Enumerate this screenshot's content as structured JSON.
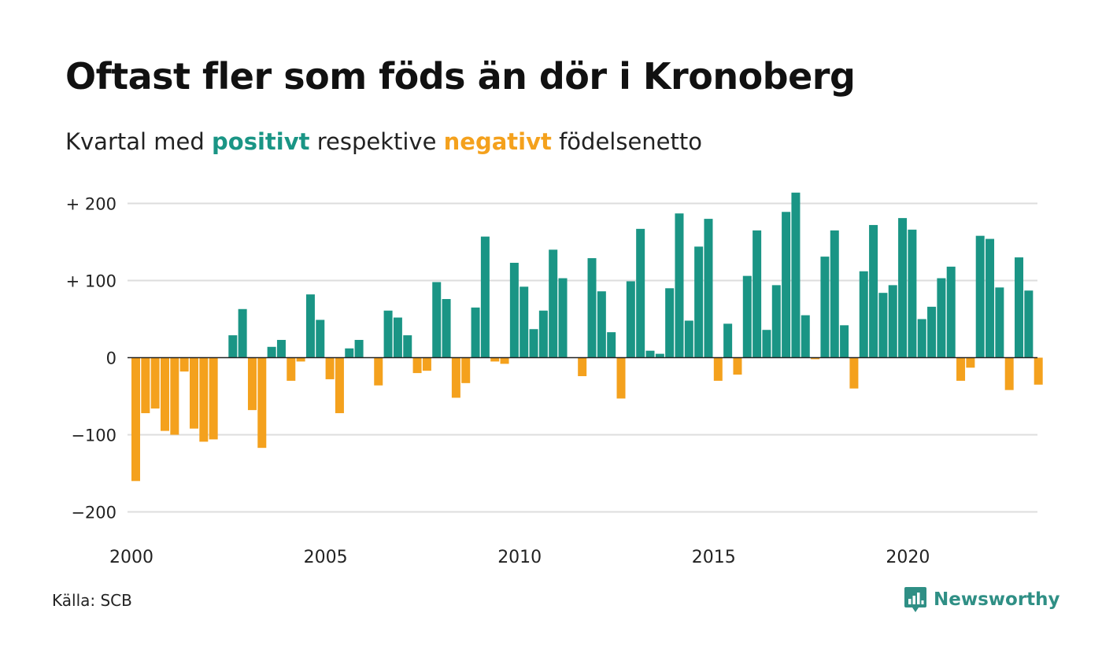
{
  "title": "Oftast fler som föds än dör i Kronoberg",
  "subtitle": {
    "prefix": "Kvartal med ",
    "positive": "positivt",
    "middle": " respektive ",
    "negative": "negativt",
    "suffix": " födelsenetto"
  },
  "source": "Källa: SCB",
  "brand": "Newsworthy",
  "colors": {
    "positive": "#1a9585",
    "negative": "#f4a11d",
    "grid": "#dddddd",
    "axis": "#222222",
    "logo": "#2f8f85"
  },
  "icons": {
    "logo": "chat-bubble-bar-chart-icon"
  },
  "chart_data": {
    "type": "bar",
    "title": "Oftast fler som föds än dör i Kronoberg",
    "subtitle": "Kvartal med positivt respektive negativt födelsenetto",
    "xlabel": "",
    "ylabel": "",
    "ylim": [
      -220,
      225
    ],
    "yticks": [
      200,
      100,
      0,
      -100,
      -200
    ],
    "ytick_labels": [
      "+ 200",
      "+ 100",
      "0",
      "−100",
      "−200"
    ],
    "xticks": [
      2000,
      2005,
      2010,
      2015,
      2020
    ],
    "xtick_labels": [
      "2000",
      "2005",
      "2010",
      "2015",
      "2020"
    ],
    "grid": true,
    "legend": "none",
    "start": "2000 Q1",
    "categories": [
      "2000 Q1",
      "2000 Q2",
      "2000 Q3",
      "2000 Q4",
      "2001 Q1",
      "2001 Q2",
      "2001 Q3",
      "2001 Q4",
      "2002 Q1",
      "2002 Q2",
      "2002 Q3",
      "2002 Q4",
      "2003 Q1",
      "2003 Q2",
      "2003 Q3",
      "2003 Q4",
      "2004 Q1",
      "2004 Q2",
      "2004 Q3",
      "2004 Q4",
      "2005 Q1",
      "2005 Q2",
      "2005 Q3",
      "2005 Q4",
      "2006 Q1",
      "2006 Q2",
      "2006 Q3",
      "2006 Q4",
      "2007 Q1",
      "2007 Q2",
      "2007 Q3",
      "2007 Q4",
      "2008 Q1",
      "2008 Q2",
      "2008 Q3",
      "2008 Q4",
      "2009 Q1",
      "2009 Q2",
      "2009 Q3",
      "2009 Q4",
      "2010 Q1",
      "2010 Q2",
      "2010 Q3",
      "2010 Q4",
      "2011 Q1",
      "2011 Q2",
      "2011 Q3",
      "2011 Q4",
      "2012 Q1",
      "2012 Q2",
      "2012 Q3",
      "2012 Q4",
      "2013 Q1",
      "2013 Q2",
      "2013 Q3",
      "2013 Q4",
      "2014 Q1",
      "2014 Q2",
      "2014 Q3",
      "2014 Q4",
      "2015 Q1",
      "2015 Q2",
      "2015 Q3",
      "2015 Q4",
      "2016 Q1",
      "2016 Q2",
      "2016 Q3",
      "2016 Q4",
      "2017 Q1",
      "2017 Q2",
      "2017 Q3",
      "2017 Q4",
      "2018 Q1",
      "2018 Q2",
      "2018 Q3",
      "2018 Q4",
      "2019 Q1",
      "2019 Q2",
      "2019 Q3",
      "2019 Q4",
      "2020 Q1",
      "2020 Q2",
      "2020 Q3",
      "2020 Q4",
      "2021 Q1",
      "2021 Q2",
      "2021 Q3",
      "2021 Q4",
      "2022 Q1",
      "2022 Q2",
      "2022 Q3",
      "2022 Q4",
      "2023 Q1",
      "2023 Q2"
    ],
    "values": [
      -160,
      -72,
      -66,
      -95,
      -100,
      -18,
      -92,
      -109,
      -106,
      0,
      29,
      63,
      -68,
      -117,
      14,
      23,
      -30,
      -5,
      82,
      49,
      -28,
      -72,
      12,
      23,
      0,
      -36,
      61,
      52,
      29,
      -20,
      -17,
      98,
      76,
      -52,
      -33,
      65,
      157,
      -5,
      -8,
      123,
      92,
      37,
      61,
      140,
      103,
      0,
      -24,
      129,
      86,
      33,
      -53,
      99,
      167,
      9,
      5,
      90,
      187,
      48,
      144,
      180,
      -30,
      44,
      -22,
      106,
      165,
      36,
      94,
      189,
      214,
      55,
      -2,
      131,
      165,
      42,
      -40,
      112,
      172,
      84,
      94,
      181,
      166,
      50,
      66,
      103,
      118,
      -30,
      -13,
      158,
      154,
      91,
      -42,
      130,
      87,
      -35
    ]
  }
}
